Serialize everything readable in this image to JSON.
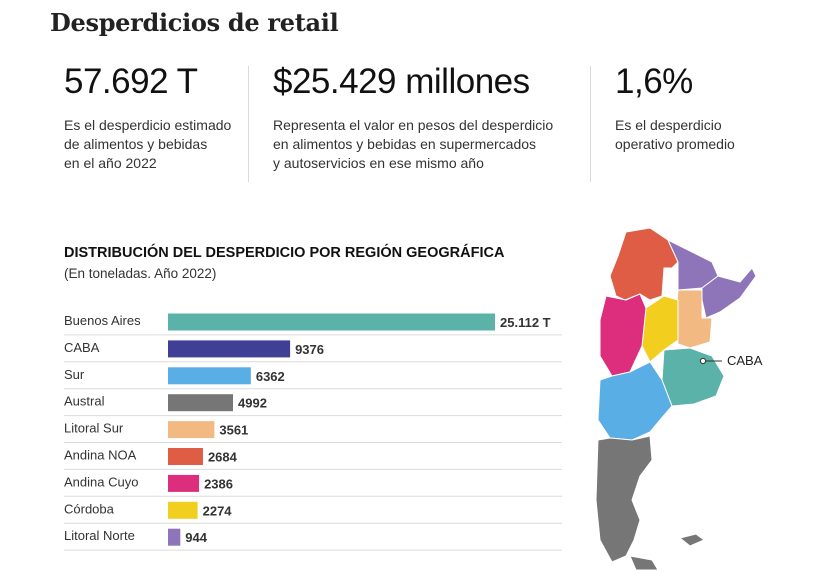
{
  "header": {
    "title": "Desperdicios de retail"
  },
  "stats": [
    {
      "value": "57.692 T",
      "description": [
        "Es el desperdicio estimado",
        "de alimentos y bebidas",
        "en el año 2022"
      ]
    },
    {
      "value": "$25.429 millones",
      "description": [
        "Representa el valor en pesos del desperdicio",
        "en alimentos y bebidas en supermercados",
        "y autoservicios en ese mismo año"
      ]
    },
    {
      "value": "1,6%",
      "description": [
        "Es el desperdicio",
        "operativo promedio"
      ]
    }
  ],
  "chart_data": {
    "type": "bar",
    "orientation": "horizontal",
    "title": "DISTRIBUCIÓN DEL DESPERDICIO POR REGIÓN GEOGRÁFICA",
    "subtitle": "(En toneladas. Año 2022)",
    "categories": [
      "Buenos Aires",
      "CABA",
      "Sur",
      "Austral",
      "Litoral Sur",
      "Andina NOA",
      "Andina Cuyo",
      "Córdoba",
      "Litoral Norte"
    ],
    "values": [
      25112,
      9376,
      6362,
      4992,
      3561,
      2684,
      2386,
      2274,
      944
    ],
    "value_labels": [
      "25.112 T",
      "9376",
      "6362",
      "4992",
      "3561",
      "2684",
      "2386",
      "2274",
      "944"
    ],
    "colors": [
      "#5ab2a8",
      "#3f3f95",
      "#5aaee6",
      "#767676",
      "#f2b983",
      "#e05d45",
      "#dd2e7d",
      "#f2cf1f",
      "#8e74b8"
    ],
    "xlim": [
      0,
      25112
    ],
    "grid": false,
    "legend": "none"
  },
  "map": {
    "label": "CABA",
    "colors": {
      "noa": "#e05d45",
      "litoral_norte": "#8e74b8",
      "litoral_sur": "#f2b983",
      "cordoba": "#f2cf1f",
      "cuyo": "#dd2e7d",
      "buenos_aires": "#5ab2a8",
      "sur": "#5aaee6",
      "austral": "#767676",
      "border": "#ffffff"
    }
  }
}
